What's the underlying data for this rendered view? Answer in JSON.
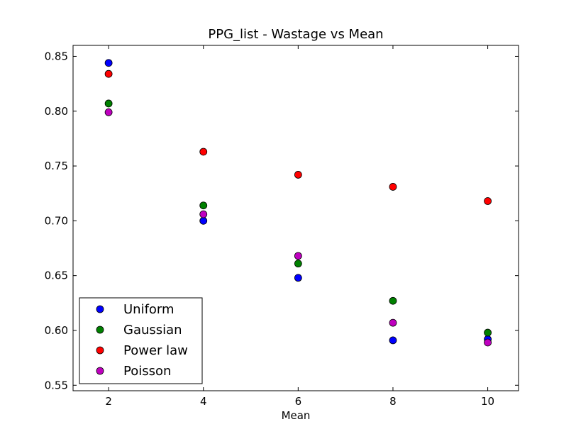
{
  "chart_data": {
    "type": "scatter",
    "title": "PPG_list - Wastage vs Mean",
    "xlabel": "Mean",
    "ylabel": "",
    "xlim": [
      1.25,
      10.65
    ],
    "ylim": [
      0.545,
      0.86
    ],
    "xticks": [
      2,
      4,
      6,
      8,
      10
    ],
    "yticks": [
      0.55,
      0.6,
      0.65,
      0.7,
      0.75,
      0.8,
      0.85
    ],
    "ytick_labels": [
      "0.55",
      "0.60",
      "0.65",
      "0.70",
      "0.75",
      "0.80",
      "0.85"
    ],
    "grid": false,
    "legend": "bottom-left",
    "series": [
      {
        "name": "Uniform",
        "color": "#0000ff",
        "x": [
          2,
          4,
          6,
          8,
          10
        ],
        "y": [
          0.844,
          0.7,
          0.648,
          0.591,
          0.592
        ]
      },
      {
        "name": "Gaussian",
        "color": "#008000",
        "x": [
          2,
          4,
          6,
          8,
          10
        ],
        "y": [
          0.807,
          0.714,
          0.661,
          0.627,
          0.598
        ]
      },
      {
        "name": "Power law",
        "color": "#ff0000",
        "x": [
          2,
          4,
          6,
          8,
          10
        ],
        "y": [
          0.834,
          0.763,
          0.742,
          0.731,
          0.718
        ]
      },
      {
        "name": "Poisson",
        "color": "#bf00bf",
        "x": [
          2,
          4,
          6,
          8,
          10
        ],
        "y": [
          0.799,
          0.706,
          0.668,
          0.607,
          0.589
        ]
      }
    ]
  }
}
